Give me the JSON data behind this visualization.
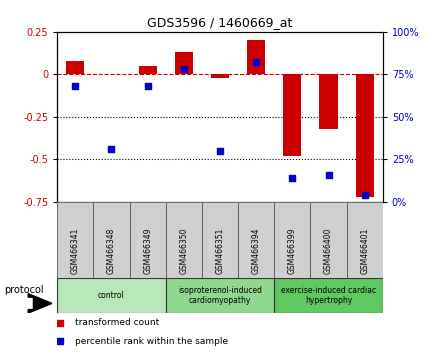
{
  "title": "GDS3596 / 1460669_at",
  "samples": [
    "GSM466341",
    "GSM466348",
    "GSM466349",
    "GSM466350",
    "GSM466351",
    "GSM466394",
    "GSM466399",
    "GSM466400",
    "GSM466401"
  ],
  "red_values": [
    0.08,
    0.0,
    0.05,
    0.13,
    -0.02,
    0.2,
    -0.48,
    -0.32,
    -0.72
  ],
  "blue_values_right": [
    68,
    31,
    68,
    78,
    30,
    82,
    14,
    16,
    4
  ],
  "groups": [
    {
      "label": "control",
      "start": 0,
      "end": 3,
      "color": "#b8e8b8"
    },
    {
      "label": "isoproterenol-induced\ncardiomyopathy",
      "start": 3,
      "end": 6,
      "color": "#90d890"
    },
    {
      "label": "exercise-induced cardiac\nhypertrophy",
      "start": 6,
      "end": 9,
      "color": "#60c860"
    }
  ],
  "ylim_left": [
    -0.75,
    0.25
  ],
  "ylim_right": [
    0,
    100
  ],
  "yticks_left": [
    -0.75,
    -0.5,
    -0.25,
    0.0,
    0.25
  ],
  "yticks_right": [
    0,
    25,
    50,
    75,
    100
  ],
  "red_color": "#cc0000",
  "blue_color": "#0000cc",
  "bar_width": 0.5,
  "blue_marker_size": 20
}
